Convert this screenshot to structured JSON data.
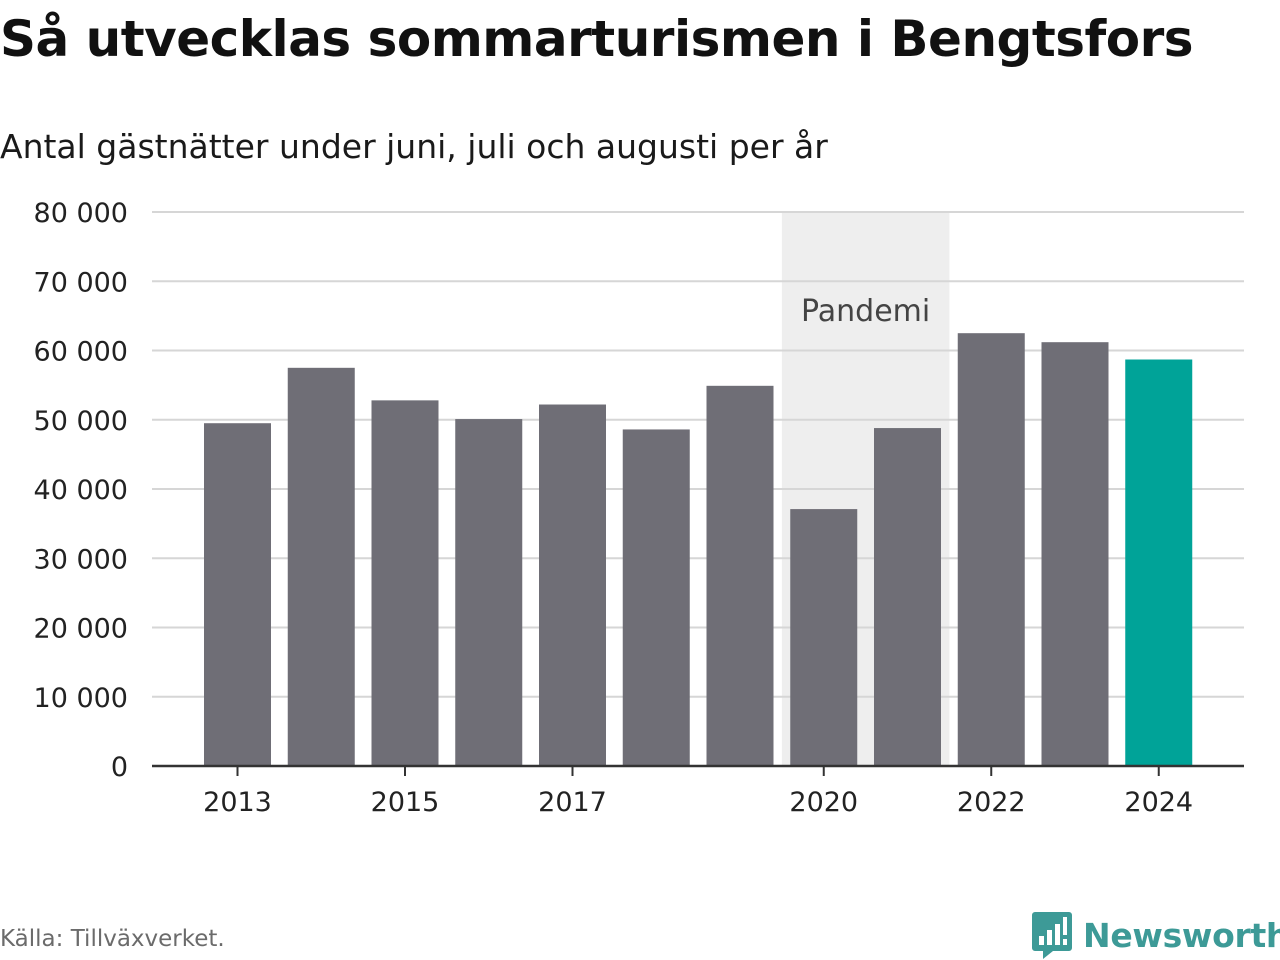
{
  "header": {
    "title": "Så utvecklas sommarturismen i Bengtsfors",
    "subtitle": "Antal gästnätter under juni, juli och augusti per år"
  },
  "footer": {
    "source": "Källa: Tillväxverket.",
    "brand": "Newsworthy",
    "brand_icon": "newsworthy-logo-icon"
  },
  "colors": {
    "bar": "#6f6e76",
    "highlight": "#00a398",
    "band": "#eeeeee",
    "grid": "#d6d6d6",
    "axis": "#333333",
    "brand": "#3d9a97"
  },
  "chart_data": {
    "type": "bar",
    "title": "Så utvecklas sommarturismen i Bengtsfors",
    "subtitle": "Antal gästnätter under juni, juli och augusti per år",
    "xlabel": "",
    "ylabel": "",
    "categories": [
      2013,
      2014,
      2015,
      2016,
      2017,
      2018,
      2019,
      2020,
      2021,
      2022,
      2023,
      2024
    ],
    "values": [
      49500,
      57500,
      52800,
      50100,
      52200,
      48600,
      54900,
      37100,
      48800,
      62500,
      61200,
      58700
    ],
    "highlight_category": 2024,
    "ylim": [
      0,
      80000
    ],
    "yticks": [
      0,
      10000,
      20000,
      30000,
      40000,
      50000,
      60000,
      70000,
      80000
    ],
    "ytick_labels": [
      "0",
      "10 000",
      "20 000",
      "30 000",
      "40 000",
      "50 000",
      "60 000",
      "70 000",
      "80 000"
    ],
    "xticks": [
      2013,
      2015,
      2017,
      2020,
      2022,
      2024
    ],
    "xtick_labels": [
      "2013",
      "2015",
      "2017",
      "2020",
      "2022",
      "2024"
    ],
    "grid": true,
    "legend": "none",
    "annotations": [
      {
        "type": "band",
        "from": 2020,
        "to": 2021,
        "label": "Pandemi"
      }
    ]
  }
}
